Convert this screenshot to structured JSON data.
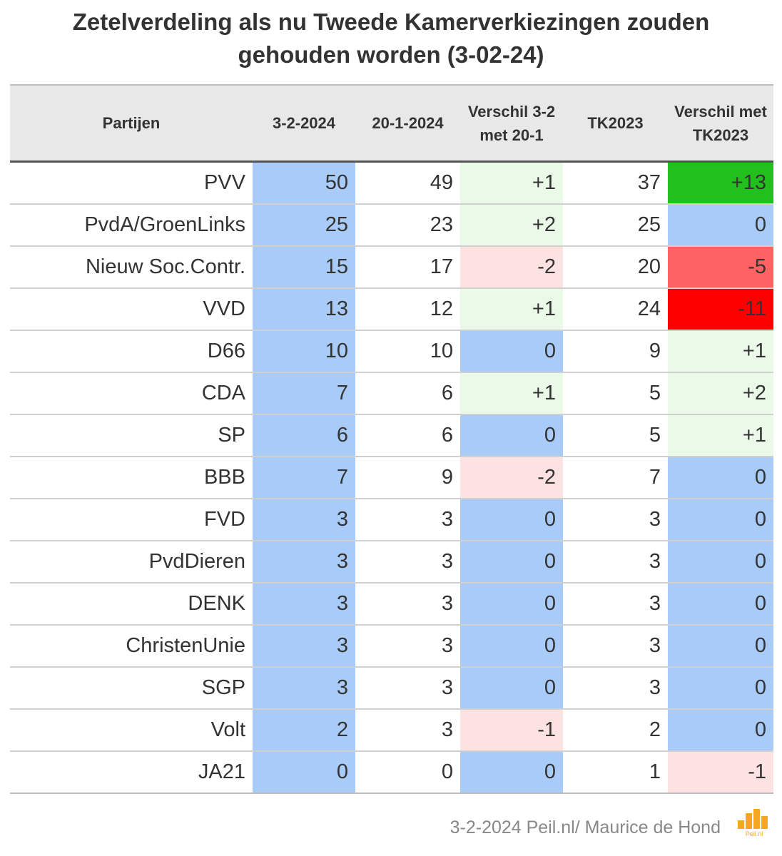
{
  "title_line1": "Zetelverdeling als nu Tweede Kamerverkiezingen zouden",
  "title_line2": "gehouden worden (3-02-24)",
  "footer": "3-2-2024 Peil.nl/ Maurice de Hond",
  "logo_text": "Peil.nl",
  "colors": {
    "seats": "#a9cbf7",
    "neutral": "#ffffff",
    "zero": "#a9cbf7",
    "up_light": "#ebf9e9",
    "down_light": "#fde2e2",
    "up_strong": "#22c01d",
    "down_medium": "#ff6262",
    "down_strong": "#fe0000",
    "logo": "#f5a623"
  },
  "chart_data": {
    "type": "table",
    "columns": [
      "Partijen",
      "3-2-2024",
      "20-1-2024",
      "Verschil 3-2 met 20-1",
      "TK2023",
      "Verschil met TK2023"
    ],
    "rows": [
      {
        "party": "PVV",
        "seats_0302": "50",
        "seats_2001": "49",
        "diff_2001": "+1",
        "tk2023": "37",
        "diff_tk2023": "+13"
      },
      {
        "party": "PvdA/GroenLinks",
        "seats_0302": "25",
        "seats_2001": "23",
        "diff_2001": "+2",
        "tk2023": "25",
        "diff_tk2023": "0"
      },
      {
        "party": "Nieuw Soc.Contr.",
        "seats_0302": "15",
        "seats_2001": "17",
        "diff_2001": "-2",
        "tk2023": "20",
        "diff_tk2023": "-5"
      },
      {
        "party": "VVD",
        "seats_0302": "13",
        "seats_2001": "12",
        "diff_2001": "+1",
        "tk2023": "24",
        "diff_tk2023": "-11"
      },
      {
        "party": "D66",
        "seats_0302": "10",
        "seats_2001": "10",
        "diff_2001": "0",
        "tk2023": "9",
        "diff_tk2023": "+1"
      },
      {
        "party": "CDA",
        "seats_0302": "7",
        "seats_2001": "6",
        "diff_2001": "+1",
        "tk2023": "5",
        "diff_tk2023": "+2"
      },
      {
        "party": "SP",
        "seats_0302": "6",
        "seats_2001": "6",
        "diff_2001": "0",
        "tk2023": "5",
        "diff_tk2023": "+1"
      },
      {
        "party": "BBB",
        "seats_0302": "7",
        "seats_2001": "9",
        "diff_2001": "-2",
        "tk2023": "7",
        "diff_tk2023": "0"
      },
      {
        "party": "FVD",
        "seats_0302": "3",
        "seats_2001": "3",
        "diff_2001": "0",
        "tk2023": "3",
        "diff_tk2023": "0"
      },
      {
        "party": "PvdDieren",
        "seats_0302": "3",
        "seats_2001": "3",
        "diff_2001": "0",
        "tk2023": "3",
        "diff_tk2023": "0"
      },
      {
        "party": "DENK",
        "seats_0302": "3",
        "seats_2001": "3",
        "diff_2001": "0",
        "tk2023": "3",
        "diff_tk2023": "0"
      },
      {
        "party": "ChristenUnie",
        "seats_0302": "3",
        "seats_2001": "3",
        "diff_2001": "0",
        "tk2023": "3",
        "diff_tk2023": "0"
      },
      {
        "party": "SGP",
        "seats_0302": "3",
        "seats_2001": "3",
        "diff_2001": "0",
        "tk2023": "3",
        "diff_tk2023": "0"
      },
      {
        "party": "Volt",
        "seats_0302": "2",
        "seats_2001": "3",
        "diff_2001": "-1",
        "tk2023": "2",
        "diff_tk2023": "0"
      },
      {
        "party": "JA21",
        "seats_0302": "0",
        "seats_2001": "0",
        "diff_2001": "0",
        "tk2023": "1",
        "diff_tk2023": "-1"
      }
    ]
  }
}
